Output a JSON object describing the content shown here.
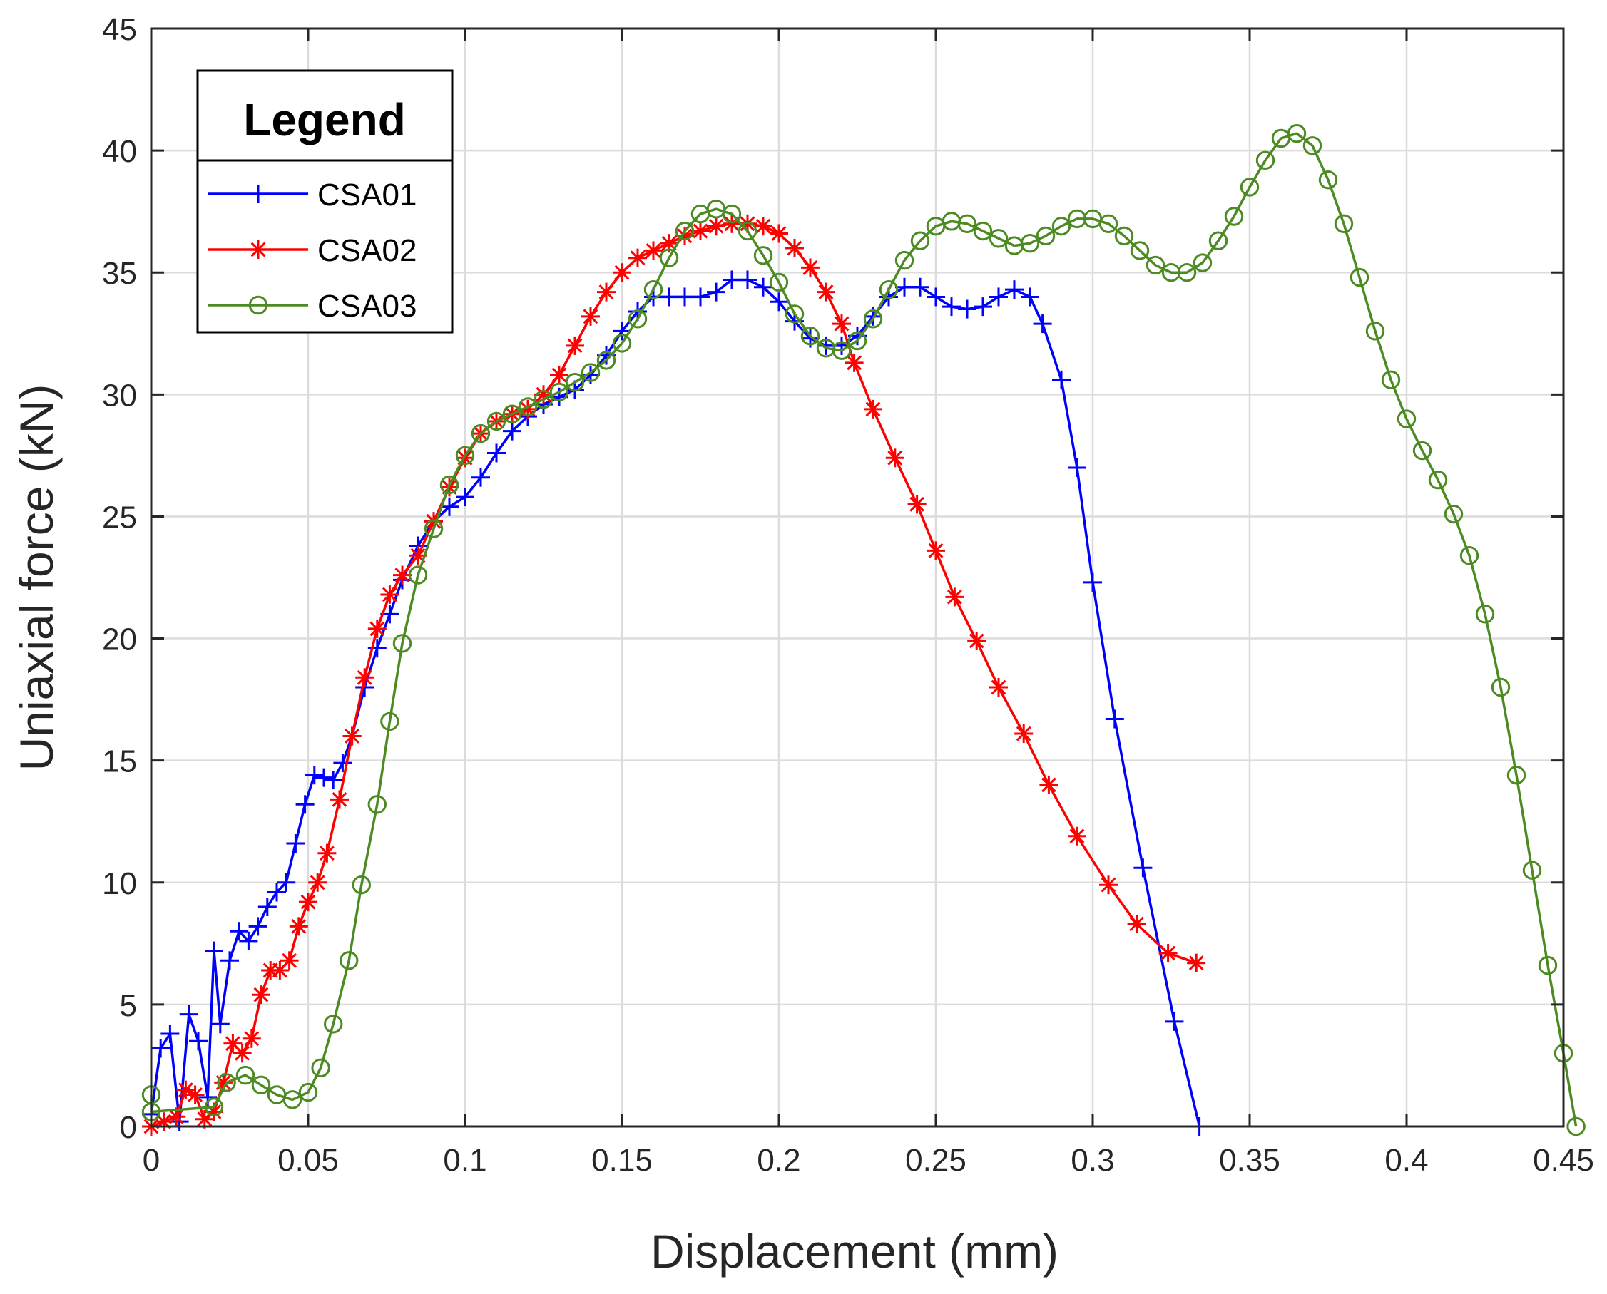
{
  "chart_data": {
    "type": "line",
    "xlabel": "Displacement (mm)",
    "ylabel": "Uniaxial force (kN)",
    "xlim": [
      0,
      0.45
    ],
    "ylim": [
      0,
      45
    ],
    "xticks": [
      0,
      0.05,
      0.1,
      0.15,
      0.2,
      0.25,
      0.3,
      0.35,
      0.4,
      0.45
    ],
    "xtick_labels": [
      "0",
      "0.05",
      "0.1",
      "0.15",
      "0.2",
      "0.25",
      "0.3",
      "0.35",
      "0.4",
      "0.45"
    ],
    "yticks": [
      0,
      5,
      10,
      15,
      20,
      25,
      30,
      35,
      40,
      45
    ],
    "ytick_labels": [
      "0",
      "5",
      "10",
      "15",
      "20",
      "25",
      "30",
      "35",
      "40",
      "45"
    ],
    "grid": true,
    "legend": {
      "title": "Legend",
      "position": "top-left"
    },
    "series": [
      {
        "name": "CSA01",
        "color": "#0000ff",
        "marker": "plus",
        "points": [
          [
            0,
            0.5
          ],
          [
            0.003,
            3.2
          ],
          [
            0.006,
            3.8
          ],
          [
            0.009,
            0.2
          ],
          [
            0.012,
            4.6
          ],
          [
            0.015,
            3.5
          ],
          [
            0.018,
            1.2
          ],
          [
            0.02,
            7.2
          ],
          [
            0.022,
            4.2
          ],
          [
            0.025,
            6.8
          ],
          [
            0.028,
            8.0
          ],
          [
            0.031,
            7.6
          ],
          [
            0.034,
            8.2
          ],
          [
            0.037,
            9.0
          ],
          [
            0.04,
            9.6
          ],
          [
            0.043,
            10.0
          ],
          [
            0.046,
            11.6
          ],
          [
            0.049,
            13.2
          ],
          [
            0.052,
            14.4
          ],
          [
            0.055,
            14.3
          ],
          [
            0.058,
            14.2
          ],
          [
            0.061,
            14.9
          ],
          [
            0.064,
            16.0
          ],
          [
            0.068,
            18.0
          ],
          [
            0.072,
            19.6
          ],
          [
            0.076,
            21.0
          ],
          [
            0.08,
            22.4
          ],
          [
            0.085,
            23.8
          ],
          [
            0.09,
            24.8
          ],
          [
            0.095,
            25.4
          ],
          [
            0.1,
            25.8
          ],
          [
            0.105,
            26.6
          ],
          [
            0.11,
            27.6
          ],
          [
            0.115,
            28.5
          ],
          [
            0.12,
            29.1
          ],
          [
            0.125,
            29.6
          ],
          [
            0.13,
            29.9
          ],
          [
            0.135,
            30.2
          ],
          [
            0.14,
            30.8
          ],
          [
            0.145,
            31.6
          ],
          [
            0.15,
            32.6
          ],
          [
            0.155,
            33.4
          ],
          [
            0.16,
            34.0
          ],
          [
            0.165,
            34.0
          ],
          [
            0.17,
            34.0
          ],
          [
            0.175,
            34.0
          ],
          [
            0.18,
            34.2
          ],
          [
            0.185,
            34.7
          ],
          [
            0.19,
            34.7
          ],
          [
            0.195,
            34.4
          ],
          [
            0.2,
            33.8
          ],
          [
            0.205,
            33.0
          ],
          [
            0.21,
            32.3
          ],
          [
            0.215,
            32.0
          ],
          [
            0.22,
            32.0
          ],
          [
            0.225,
            32.4
          ],
          [
            0.23,
            33.2
          ],
          [
            0.235,
            34.0
          ],
          [
            0.24,
            34.4
          ],
          [
            0.245,
            34.4
          ],
          [
            0.25,
            34.0
          ],
          [
            0.255,
            33.6
          ],
          [
            0.26,
            33.5
          ],
          [
            0.265,
            33.6
          ],
          [
            0.27,
            34.0
          ],
          [
            0.275,
            34.3
          ],
          [
            0.28,
            34.0
          ],
          [
            0.284,
            32.9
          ],
          [
            0.29,
            30.6
          ],
          [
            0.295,
            27.0
          ],
          [
            0.3,
            22.3
          ],
          [
            0.307,
            16.7
          ],
          [
            0.316,
            10.6
          ],
          [
            0.326,
            4.3
          ],
          [
            0.334,
            0
          ]
        ]
      },
      {
        "name": "CSA02",
        "color": "#ff0000",
        "marker": "asterisk",
        "points": [
          [
            0,
            0
          ],
          [
            0.004,
            0.2
          ],
          [
            0.008,
            0.4
          ],
          [
            0.011,
            1.5
          ],
          [
            0.014,
            1.3
          ],
          [
            0.017,
            0.3
          ],
          [
            0.02,
            0.6
          ],
          [
            0.023,
            1.8
          ],
          [
            0.026,
            3.4
          ],
          [
            0.029,
            3.0
          ],
          [
            0.032,
            3.6
          ],
          [
            0.035,
            5.4
          ],
          [
            0.038,
            6.4
          ],
          [
            0.041,
            6.4
          ],
          [
            0.044,
            6.8
          ],
          [
            0.047,
            8.2
          ],
          [
            0.05,
            9.2
          ],
          [
            0.053,
            10.0
          ],
          [
            0.056,
            11.2
          ],
          [
            0.06,
            13.4
          ],
          [
            0.064,
            16.0
          ],
          [
            0.068,
            18.4
          ],
          [
            0.072,
            20.4
          ],
          [
            0.076,
            21.8
          ],
          [
            0.08,
            22.6
          ],
          [
            0.085,
            23.4
          ],
          [
            0.09,
            24.8
          ],
          [
            0.095,
            26.2
          ],
          [
            0.1,
            27.4
          ],
          [
            0.105,
            28.4
          ],
          [
            0.11,
            28.9
          ],
          [
            0.115,
            29.2
          ],
          [
            0.12,
            29.4
          ],
          [
            0.125,
            30.0
          ],
          [
            0.13,
            30.8
          ],
          [
            0.135,
            32.0
          ],
          [
            0.14,
            33.2
          ],
          [
            0.145,
            34.2
          ],
          [
            0.15,
            35.0
          ],
          [
            0.155,
            35.6
          ],
          [
            0.16,
            35.9
          ],
          [
            0.165,
            36.2
          ],
          [
            0.17,
            36.5
          ],
          [
            0.175,
            36.7
          ],
          [
            0.18,
            36.9
          ],
          [
            0.185,
            37.0
          ],
          [
            0.19,
            37.0
          ],
          [
            0.195,
            36.9
          ],
          [
            0.2,
            36.6
          ],
          [
            0.205,
            36.0
          ],
          [
            0.21,
            35.2
          ],
          [
            0.215,
            34.2
          ],
          [
            0.22,
            32.9
          ],
          [
            0.224,
            31.3
          ],
          [
            0.23,
            29.4
          ],
          [
            0.237,
            27.4
          ],
          [
            0.244,
            25.5
          ],
          [
            0.25,
            23.6
          ],
          [
            0.256,
            21.7
          ],
          [
            0.263,
            19.9
          ],
          [
            0.27,
            18.0
          ],
          [
            0.278,
            16.1
          ],
          [
            0.286,
            14.0
          ],
          [
            0.295,
            11.9
          ],
          [
            0.305,
            9.9
          ],
          [
            0.314,
            8.3
          ],
          [
            0.324,
            7.1
          ],
          [
            0.333,
            6.7
          ]
        ]
      },
      {
        "name": "CSA03",
        "color": "#4c8a22",
        "marker": "circle",
        "points": [
          [
            0,
            1.3
          ],
          [
            0.0,
            0.6
          ],
          [
            0.02,
            0.8
          ],
          [
            0.024,
            1.8
          ],
          [
            0.03,
            2.1
          ],
          [
            0.035,
            1.7
          ],
          [
            0.04,
            1.3
          ],
          [
            0.045,
            1.1
          ],
          [
            0.05,
            1.4
          ],
          [
            0.054,
            2.4
          ],
          [
            0.058,
            4.2
          ],
          [
            0.063,
            6.8
          ],
          [
            0.067,
            9.9
          ],
          [
            0.072,
            13.2
          ],
          [
            0.076,
            16.6
          ],
          [
            0.08,
            19.8
          ],
          [
            0.085,
            22.6
          ],
          [
            0.09,
            24.5
          ],
          [
            0.095,
            26.3
          ],
          [
            0.1,
            27.5
          ],
          [
            0.105,
            28.4
          ],
          [
            0.11,
            28.9
          ],
          [
            0.115,
            29.2
          ],
          [
            0.12,
            29.5
          ],
          [
            0.125,
            29.8
          ],
          [
            0.13,
            30.1
          ],
          [
            0.135,
            30.5
          ],
          [
            0.14,
            30.9
          ],
          [
            0.145,
            31.4
          ],
          [
            0.15,
            32.1
          ],
          [
            0.155,
            33.1
          ],
          [
            0.16,
            34.3
          ],
          [
            0.165,
            35.6
          ],
          [
            0.17,
            36.7
          ],
          [
            0.175,
            37.4
          ],
          [
            0.18,
            37.6
          ],
          [
            0.185,
            37.4
          ],
          [
            0.19,
            36.7
          ],
          [
            0.195,
            35.7
          ],
          [
            0.2,
            34.6
          ],
          [
            0.205,
            33.3
          ],
          [
            0.21,
            32.4
          ],
          [
            0.215,
            31.9
          ],
          [
            0.22,
            31.8
          ],
          [
            0.225,
            32.2
          ],
          [
            0.23,
            33.1
          ],
          [
            0.235,
            34.3
          ],
          [
            0.24,
            35.5
          ],
          [
            0.245,
            36.3
          ],
          [
            0.25,
            36.9
          ],
          [
            0.255,
            37.1
          ],
          [
            0.26,
            37.0
          ],
          [
            0.265,
            36.7
          ],
          [
            0.27,
            36.4
          ],
          [
            0.275,
            36.1
          ],
          [
            0.28,
            36.2
          ],
          [
            0.285,
            36.5
          ],
          [
            0.29,
            36.9
          ],
          [
            0.295,
            37.2
          ],
          [
            0.3,
            37.2
          ],
          [
            0.305,
            37.0
          ],
          [
            0.31,
            36.5
          ],
          [
            0.315,
            35.9
          ],
          [
            0.32,
            35.3
          ],
          [
            0.325,
            35.0
          ],
          [
            0.33,
            35.0
          ],
          [
            0.335,
            35.4
          ],
          [
            0.34,
            36.3
          ],
          [
            0.345,
            37.3
          ],
          [
            0.35,
            38.5
          ],
          [
            0.355,
            39.6
          ],
          [
            0.36,
            40.5
          ],
          [
            0.365,
            40.7
          ],
          [
            0.37,
            40.2
          ],
          [
            0.375,
            38.8
          ],
          [
            0.38,
            37.0
          ],
          [
            0.385,
            34.8
          ],
          [
            0.39,
            32.6
          ],
          [
            0.395,
            30.6
          ],
          [
            0.4,
            29.0
          ],
          [
            0.405,
            27.7
          ],
          [
            0.41,
            26.5
          ],
          [
            0.415,
            25.1
          ],
          [
            0.42,
            23.4
          ],
          [
            0.425,
            21.0
          ],
          [
            0.43,
            18.0
          ],
          [
            0.435,
            14.4
          ],
          [
            0.44,
            10.5
          ],
          [
            0.445,
            6.6
          ],
          [
            0.45,
            3.0
          ],
          [
            0.454,
            0
          ]
        ]
      }
    ]
  }
}
